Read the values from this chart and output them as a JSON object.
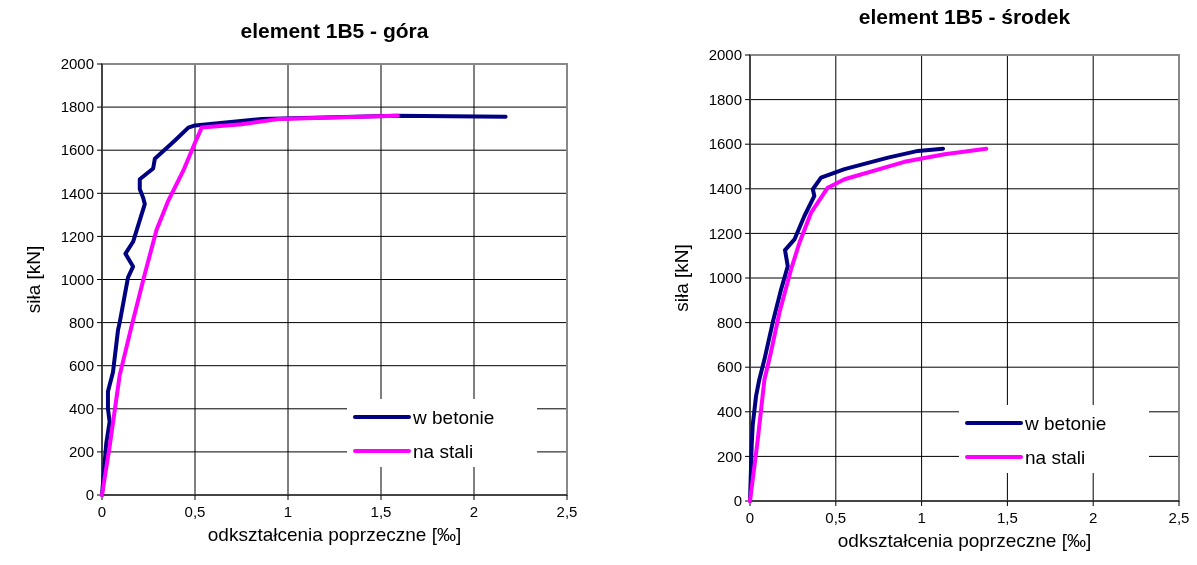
{
  "chart_data": [
    {
      "type": "line",
      "title": "element 1B5 - góra",
      "xlabel": "odkształcenia poprzeczne [‰]",
      "ylabel": "siła [kN]",
      "xlim": [
        0,
        2.5
      ],
      "ylim": [
        0,
        2000
      ],
      "xticks": [
        0,
        {
          "value": 0.5,
          "label": "0,5"
        },
        1,
        {
          "value": 1.5,
          "label": "1,5"
        },
        2,
        {
          "value": 2.5,
          "label": "2,5"
        }
      ],
      "yticks": [
        0,
        200,
        400,
        600,
        800,
        1000,
        1200,
        1400,
        1600,
        1800,
        2000
      ],
      "grid": true,
      "legend": "bottom right",
      "marker": "none",
      "line_style": "solid",
      "series": [
        {
          "name": "w betonie",
          "color": "#000080",
          "x": [
            0,
            0.023,
            0.041,
            0.032,
            0.032,
            0.059,
            0.086,
            0.095,
            0.14,
            0.167,
            0.126,
            0.167,
            0.23,
            0.221,
            0.203,
            0.203,
            0.275,
            0.284,
            0.392,
            0.464,
            0.5,
            0.86,
            1.58,
            2.17
          ],
          "values": [
            0,
            240,
            340,
            400,
            480,
            570,
            765,
            800,
            1010,
            1060,
            1120,
            1175,
            1350,
            1380,
            1420,
            1465,
            1515,
            1560,
            1645,
            1705,
            1715,
            1745,
            1760,
            1755
          ]
        },
        {
          "name": "na stali",
          "color": "#ff00ff",
          "x": [
            0,
            0.041,
            0.095,
            0.158,
            0.23,
            0.293,
            0.356,
            0.437,
            0.5,
            0.536,
            0.752,
            0.95,
            1.59
          ],
          "values": [
            0,
            225,
            555,
            780,
            1025,
            1230,
            1365,
            1505,
            1635,
            1705,
            1720,
            1745,
            1760
          ]
        }
      ]
    },
    {
      "type": "line",
      "title": "element 1B5 - środek",
      "xlabel": "odkształcenia poprzeczne [‰]",
      "ylabel": "siła [kN]",
      "xlim": [
        0,
        2.5
      ],
      "ylim": [
        0,
        2000
      ],
      "xticks": [
        0,
        {
          "value": 0.5,
          "label": "0,5"
        },
        1,
        {
          "value": 1.5,
          "label": "1,5"
        },
        2,
        {
          "value": 2.5,
          "label": "2,5"
        }
      ],
      "yticks": [
        0,
        200,
        400,
        600,
        800,
        1000,
        1200,
        1400,
        1600,
        1800,
        2000
      ],
      "grid": true,
      "legend": "bottom right",
      "marker": "none",
      "line_style": "solid",
      "series": [
        {
          "name": "w betonie",
          "color": "#000080",
          "x": [
            0,
            0.01,
            0.016,
            0.035,
            0.054,
            0.084,
            0.132,
            0.181,
            0.22,
            0.204,
            0.259,
            0.317,
            0.375,
            0.366,
            0.414,
            0.551,
            0.804,
            0.979,
            1.125
          ],
          "values": [
            0,
            252,
            342,
            469,
            544,
            634,
            799,
            948,
            1053,
            1125,
            1173,
            1278,
            1368,
            1398,
            1450,
            1488,
            1540,
            1570,
            1580
          ]
        },
        {
          "name": "na stali",
          "color": "#ff00ff",
          "x": [
            0,
            0.045,
            0.084,
            0.121,
            0.171,
            0.239,
            0.288,
            0.356,
            0.453,
            0.551,
            0.9,
            1.134,
            1.377
          ],
          "values": [
            0,
            274,
            544,
            664,
            843,
            1038,
            1158,
            1293,
            1405,
            1443,
            1521,
            1555,
            1580
          ]
        }
      ]
    }
  ]
}
